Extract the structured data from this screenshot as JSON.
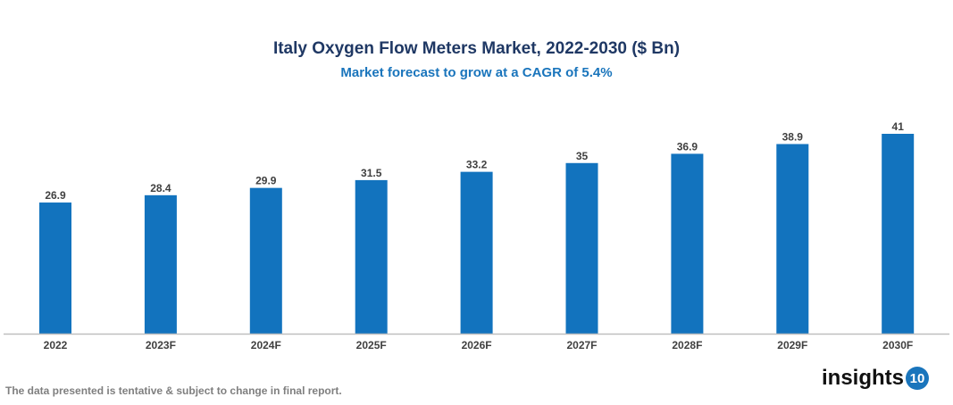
{
  "chart_data": {
    "type": "bar",
    "title": "Italy Oxygen Flow Meters Market, 2022-2030 ($ Bn)",
    "subtitle": "Market forecast to grow at a CAGR of 5.4%",
    "categories": [
      "2022",
      "2023F",
      "2024F",
      "2025F",
      "2026F",
      "2027F",
      "2028F",
      "2029F",
      "2030F"
    ],
    "values": [
      26.9,
      28.4,
      29.9,
      31.5,
      33.2,
      35,
      36.9,
      38.9,
      41
    ],
    "ylim": [
      0,
      41
    ],
    "grid": false,
    "bar_color": "#1273be",
    "xlabel": "",
    "ylabel": ""
  },
  "footer": "The data presented is tentative & subject to change in final report.",
  "logo": {
    "text": "insights",
    "badge": "10"
  }
}
